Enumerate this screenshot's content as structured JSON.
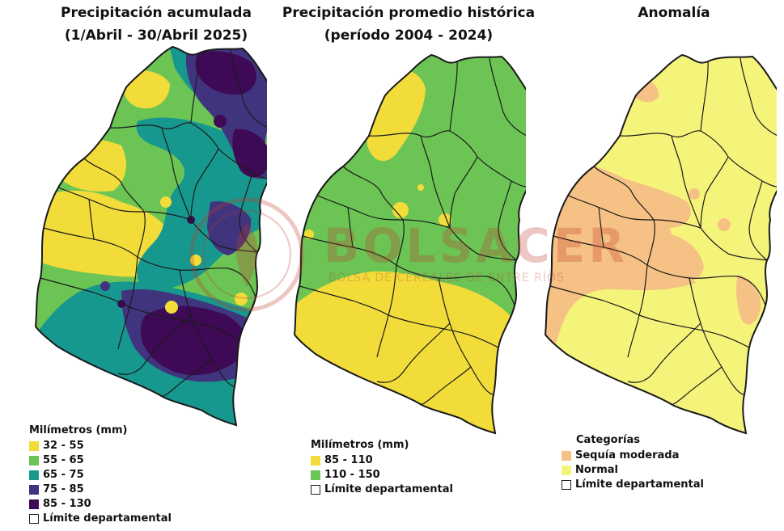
{
  "colors": {
    "p32_55": "#f2dc3a",
    "p55_65": "#6cc455",
    "p65_75": "#17988f",
    "p75_85": "#41347f",
    "p85_130": "#3e0a55",
    "h85_110": "#f2dc3a",
    "h110_150": "#6cc455",
    "drought": "#f6c184",
    "normal": "#f5f47a",
    "border": "#1a1a1a",
    "watermark": "#c0392b"
  },
  "panels": {
    "accum": {
      "title_line1": "Precipitación acumulada",
      "title_line2": "(1/Abril - 30/Abril 2025)",
      "legend": {
        "title": "Milímetros (mm)",
        "items": [
          {
            "label": "32 - 55",
            "color": "#f2dc3a"
          },
          {
            "label": "55 - 65",
            "color": "#6cc455"
          },
          {
            "label": "65 - 75",
            "color": "#17988f"
          },
          {
            "label": "75 - 85",
            "color": "#41347f"
          },
          {
            "label": "85 - 130",
            "color": "#3e0a55"
          }
        ],
        "boundary": "Límite departamental"
      }
    },
    "historic": {
      "title_line1": "Precipitación promedio histórica",
      "title_line2": "(período 2004 - 2024)",
      "legend": {
        "title": "Milímetros (mm)",
        "items": [
          {
            "label": "85 - 110",
            "color": "#f2dc3a"
          },
          {
            "label": "110 - 150",
            "color": "#6cc455"
          }
        ],
        "boundary": "Límite departamental"
      }
    },
    "anomaly": {
      "title_line1": "Anomalía",
      "legend": {
        "title": "Categorías",
        "items": [
          {
            "label": "Sequía moderada",
            "color": "#f6c184"
          },
          {
            "label": "Normal",
            "color": "#f5f47a"
          }
        ],
        "boundary": "Límite departamental"
      }
    }
  },
  "watermark": {
    "name": "BOLSACER",
    "subtitle": "BOLSA DE CEREALES DE ENTRE RÍOS"
  }
}
